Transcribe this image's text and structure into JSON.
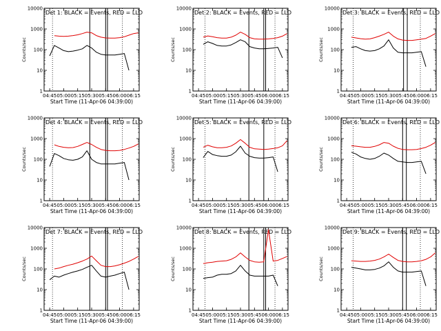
{
  "figure": {
    "x_label": "Start Time (11-Apr-06 04:39:00)",
    "y_label": "Counts/sec",
    "y_ticks": [
      "1",
      "10",
      "100",
      "1000",
      "10000"
    ],
    "x_ticks": [
      "04:45",
      "05:00",
      "05:15",
      "05:30",
      "05:45",
      "06:00",
      "06:15"
    ],
    "series_colors": {
      "events": "#000000",
      "lld": "#e00000"
    }
  },
  "chart_data": [
    {
      "type": "line",
      "title": "Det 1: BLACK = Events, RED = LLD",
      "xlabel": "Start Time (11-Apr-06 04:39:00)",
      "ylabel": "Counts/sec",
      "ylim": [
        1,
        10000
      ],
      "yscale": "log",
      "x": [
        "04:45",
        "04:50",
        "04:55",
        "05:00",
        "05:05",
        "05:10",
        "05:15",
        "05:20",
        "05:25",
        "05:30",
        "05:35",
        "05:40",
        "05:45",
        "05:50",
        "05:55",
        "06:00",
        "06:05",
        "06:10",
        "06:15",
        "06:20"
      ],
      "series": [
        {
          "name": "Events",
          "color": "#000000",
          "values": [
            50,
            160,
            120,
            90,
            80,
            85,
            95,
            110,
            160,
            120,
            75,
            60,
            55,
            55,
            55,
            60,
            65,
            10,
            null,
            null
          ]
        },
        {
          "name": "LLD",
          "color": "#e00000",
          "values": [
            null,
            470,
            450,
            440,
            450,
            480,
            520,
            600,
            700,
            650,
            480,
            400,
            370,
            360,
            360,
            380,
            420,
            500,
            600,
            650
          ]
        }
      ],
      "vertical_solid": [
        "05:28",
        "05:45",
        "05:47"
      ],
      "vertical_dotted": [
        "04:48",
        "06:03"
      ]
    },
    {
      "type": "line",
      "title": "Det 2: BLACK = Events, RED = LLD",
      "xlabel": "Start Time (11-Apr-06 04:39:00)",
      "ylabel": "Counts/sec",
      "ylim": [
        1,
        10000
      ],
      "yscale": "log",
      "x": [
        "04:45",
        "04:50",
        "04:55",
        "05:00",
        "05:05",
        "05:10",
        "05:15",
        "05:20",
        "05:25",
        "05:30",
        "05:35",
        "05:40",
        "05:45",
        "05:50",
        "05:55",
        "06:00",
        "06:05",
        "06:10",
        "06:15",
        "06:20"
      ],
      "series": [
        {
          "name": "Events",
          "color": "#000000",
          "values": [
            null,
            180,
            240,
            200,
            160,
            150,
            150,
            170,
            220,
            300,
            240,
            140,
            120,
            110,
            110,
            115,
            120,
            130,
            40,
            null
          ]
        },
        {
          "name": "LLD",
          "color": "#e00000",
          "values": [
            null,
            400,
            460,
            420,
            380,
            360,
            360,
            400,
            500,
            700,
            550,
            380,
            330,
            320,
            320,
            330,
            350,
            380,
            450,
            600
          ]
        }
      ],
      "vertical_solid": [
        "05:39",
        "05:55",
        "05:57"
      ],
      "vertical_dotted": [
        "04:52",
        "06:07"
      ]
    },
    {
      "type": "line",
      "title": "Det 3: BLACK = Events, RED = LLD",
      "xlabel": "Start Time (11-Apr-06 04:39:00)",
      "ylabel": "Counts/sec",
      "ylim": [
        1,
        10000
      ],
      "yscale": "log",
      "x": [
        "04:45",
        "04:50",
        "04:55",
        "05:00",
        "05:05",
        "05:10",
        "05:15",
        "05:20",
        "05:25",
        "05:30",
        "05:35",
        "05:40",
        "05:45",
        "05:50",
        "05:55",
        "06:00",
        "06:05",
        "06:10",
        "06:15",
        "06:20"
      ],
      "series": [
        {
          "name": "Events",
          "color": "#000000",
          "values": [
            null,
            130,
            140,
            110,
            90,
            85,
            90,
            110,
            150,
            300,
            120,
            75,
            70,
            70,
            70,
            75,
            80,
            15,
            null,
            null
          ]
        },
        {
          "name": "LLD",
          "color": "#e00000",
          "values": [
            null,
            400,
            370,
            340,
            320,
            330,
            380,
            450,
            550,
            700,
            450,
            330,
            290,
            280,
            280,
            300,
            320,
            350,
            450,
            600
          ]
        }
      ],
      "vertical_solid": [
        "05:46",
        "05:50"
      ],
      "vertical_dotted": [
        "04:52",
        "06:04"
      ]
    },
    {
      "type": "line",
      "title": "Det 4: BLACK = Events, RED = LLD",
      "xlabel": "Start Time (11-Apr-06 04:39:00)",
      "ylabel": "Counts/sec",
      "ylim": [
        1,
        10000
      ],
      "yscale": "log",
      "x": [
        "04:45",
        "04:50",
        "04:55",
        "05:00",
        "05:05",
        "05:10",
        "05:15",
        "05:20",
        "05:25",
        "05:30",
        "05:35",
        "05:40",
        "05:45",
        "05:50",
        "05:55",
        "06:00",
        "06:05",
        "06:10",
        "06:15",
        "06:20"
      ],
      "series": [
        {
          "name": "Events",
          "color": "#000000",
          "values": [
            45,
            190,
            150,
            110,
            95,
            90,
            100,
            130,
            260,
            100,
            70,
            60,
            60,
            60,
            60,
            65,
            70,
            10,
            null,
            null
          ]
        },
        {
          "name": "LLD",
          "color": "#e00000",
          "values": [
            null,
            500,
            420,
            380,
            360,
            370,
            420,
            520,
            650,
            520,
            380,
            300,
            270,
            260,
            260,
            270,
            300,
            350,
            420,
            550
          ]
        }
      ],
      "vertical_solid": [
        "05:28",
        "05:45",
        "05:47"
      ],
      "vertical_dotted": [
        "04:48",
        "06:03"
      ]
    },
    {
      "type": "line",
      "title": "Det 5: BLACK = Events, RED = LLD",
      "xlabel": "Start Time (11-Apr-06 04:39:00)",
      "ylabel": "Counts/sec",
      "ylim": [
        1,
        10000
      ],
      "yscale": "log",
      "x": [
        "04:45",
        "04:50",
        "04:55",
        "05:00",
        "05:05",
        "05:10",
        "05:15",
        "05:20",
        "05:25",
        "05:30",
        "05:35",
        "05:40",
        "05:45",
        "05:50",
        "05:55",
        "06:00",
        "06:05",
        "06:10",
        "06:15",
        "06:20"
      ],
      "series": [
        {
          "name": "Events",
          "color": "#000000",
          "values": [
            null,
            120,
            240,
            170,
            150,
            140,
            140,
            160,
            230,
            430,
            200,
            140,
            120,
            115,
            115,
            120,
            130,
            25,
            null,
            null
          ]
        },
        {
          "name": "LLD",
          "color": "#e00000",
          "values": [
            null,
            380,
            480,
            400,
            360,
            360,
            380,
            440,
            600,
            900,
            600,
            380,
            320,
            310,
            300,
            310,
            330,
            360,
            450,
            800
          ]
        }
      ],
      "vertical_solid": [
        "05:39",
        "05:55"
      ],
      "vertical_dotted": [
        "04:52",
        "06:07"
      ]
    },
    {
      "type": "line",
      "title": "Det 6: BLACK = Events, RED = LLD",
      "xlabel": "Start Time (11-Apr-06 04:39:00)",
      "ylabel": "Counts/sec",
      "ylim": [
        1,
        10000
      ],
      "yscale": "log",
      "x": [
        "04:45",
        "04:50",
        "04:55",
        "05:00",
        "05:05",
        "05:10",
        "05:15",
        "05:20",
        "05:25",
        "05:30",
        "05:35",
        "05:40",
        "05:45",
        "05:50",
        "05:55",
        "06:00",
        "06:05",
        "06:10",
        "06:15",
        "06:20"
      ],
      "series": [
        {
          "name": "Events",
          "color": "#000000",
          "values": [
            null,
            220,
            180,
            130,
            110,
            100,
            110,
            140,
            200,
            160,
            110,
            80,
            75,
            70,
            70,
            75,
            80,
            20,
            null,
            null
          ]
        },
        {
          "name": "LLD",
          "color": "#e00000",
          "values": [
            null,
            450,
            430,
            400,
            380,
            380,
            420,
            500,
            650,
            600,
            430,
            340,
            300,
            290,
            290,
            300,
            330,
            380,
            480,
            650
          ]
        }
      ],
      "vertical_solid": [
        "05:45",
        "05:49"
      ],
      "vertical_dotted": [
        "04:52",
        "06:04"
      ]
    },
    {
      "type": "line",
      "title": "Det 7: BLACK = Events, RED = LLD",
      "xlabel": "Start Time (11-Apr-06 04:39:00)",
      "ylabel": "Counts/sec",
      "ylim": [
        1,
        10000
      ],
      "yscale": "log",
      "x": [
        "04:45",
        "04:50",
        "04:55",
        "05:00",
        "05:05",
        "05:10",
        "05:15",
        "05:20",
        "05:25",
        "05:30",
        "05:35",
        "05:40",
        "05:45",
        "05:50",
        "05:55",
        "06:00",
        "06:05",
        "06:10",
        "06:15",
        "06:20"
      ],
      "series": [
        {
          "name": "Events",
          "color": "#000000",
          "values": [
            30,
            45,
            40,
            50,
            60,
            70,
            80,
            95,
            120,
            150,
            80,
            45,
            40,
            45,
            50,
            60,
            70,
            10,
            null,
            null
          ]
        },
        {
          "name": "LLD",
          "color": "#e00000",
          "values": [
            null,
            100,
            110,
            130,
            150,
            170,
            200,
            240,
            300,
            420,
            250,
            150,
            130,
            130,
            140,
            160,
            190,
            230,
            300,
            400
          ]
        }
      ],
      "vertical_solid": [
        "05:28",
        "05:45",
        "05:47"
      ],
      "vertical_dotted": [
        "04:48",
        "06:03"
      ]
    },
    {
      "type": "line",
      "title": "Det 8: BLACK = Events, RED = LLD",
      "xlabel": "Start Time (11-Apr-06 04:39:00)",
      "ylabel": "Counts/sec",
      "ylim": [
        1,
        10000
      ],
      "yscale": "log",
      "x": [
        "04:45",
        "04:50",
        "04:55",
        "05:00",
        "05:05",
        "05:10",
        "05:15",
        "05:20",
        "05:25",
        "05:30",
        "05:35",
        "05:40",
        "05:45",
        "05:50",
        "05:55",
        "06:00",
        "06:05",
        "06:10",
        "06:15",
        "06:20"
      ],
      "series": [
        {
          "name": "Events",
          "color": "#000000",
          "values": [
            null,
            35,
            38,
            40,
            50,
            55,
            55,
            60,
            80,
            150,
            80,
            50,
            45,
            45,
            45,
            45,
            50,
            15,
            null,
            null
          ]
        },
        {
          "name": "LLD",
          "color": "#e00000",
          "values": [
            null,
            180,
            200,
            210,
            230,
            240,
            250,
            290,
            380,
            600,
            380,
            260,
            220,
            210,
            220,
            8000,
            240,
            260,
            320,
            400
          ]
        }
      ],
      "vertical_solid": [
        "05:39",
        "05:55",
        "05:57"
      ],
      "vertical_dotted": [
        "04:52",
        "06:07"
      ]
    },
    {
      "type": "line",
      "title": "Det 9: BLACK = Events, RED = LLD",
      "xlabel": "Start Time (11-Apr-06 04:39:00)",
      "ylabel": "Counts/sec",
      "ylim": [
        1,
        10000
      ],
      "yscale": "log",
      "x": [
        "04:45",
        "04:50",
        "04:55",
        "05:00",
        "05:05",
        "05:10",
        "05:15",
        "05:20",
        "05:25",
        "05:30",
        "05:35",
        "05:40",
        "05:45",
        "05:50",
        "05:55",
        "06:00",
        "06:05",
        "06:10",
        "06:15",
        "06:20"
      ],
      "series": [
        {
          "name": "Events",
          "color": "#000000",
          "values": [
            null,
            120,
            110,
            100,
            90,
            90,
            95,
            110,
            140,
            220,
            120,
            80,
            70,
            70,
            70,
            75,
            80,
            15,
            null,
            null
          ]
        },
        {
          "name": "LLD",
          "color": "#e00000",
          "values": [
            null,
            250,
            240,
            230,
            230,
            240,
            260,
            300,
            380,
            520,
            360,
            260,
            230,
            220,
            220,
            230,
            250,
            290,
            380,
            600
          ]
        }
      ],
      "vertical_solid": [
        "05:45",
        "05:49"
      ],
      "vertical_dotted": [
        "04:52",
        "06:04"
      ]
    }
  ]
}
